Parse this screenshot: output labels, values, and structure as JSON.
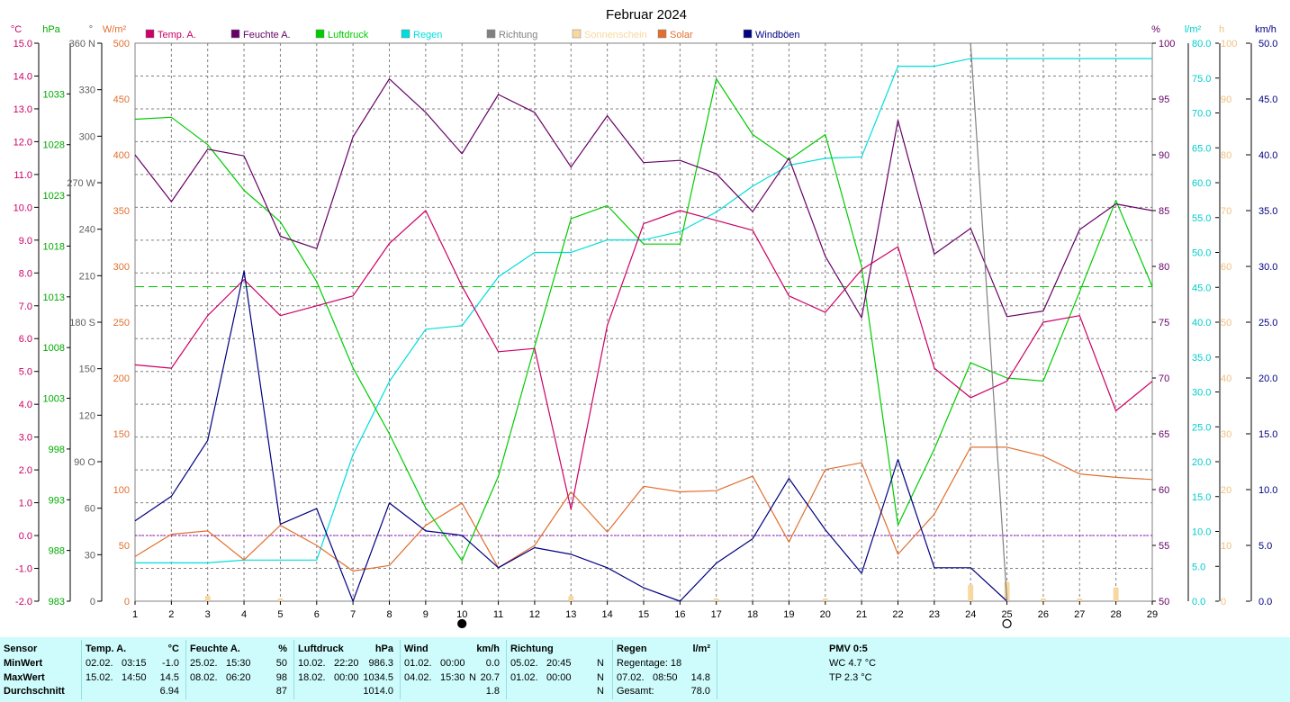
{
  "chart_data": {
    "type": "line",
    "title": "Februar 2024",
    "x": [
      1,
      2,
      3,
      4,
      5,
      6,
      7,
      8,
      9,
      10,
      11,
      12,
      13,
      14,
      15,
      16,
      17,
      18,
      19,
      20,
      21,
      22,
      23,
      24,
      25,
      26,
      27,
      28,
      29
    ],
    "xlim": [
      1,
      29
    ],
    "xtick_labels": [
      "1",
      "2",
      "3",
      "4",
      "5",
      "6",
      "7",
      "8",
      "9",
      "10",
      "11",
      "12",
      "13",
      "14",
      "15",
      "16",
      "17",
      "18",
      "19",
      "20",
      "21",
      "22",
      "23",
      "24",
      "25",
      "26",
      "27",
      "28",
      "29"
    ],
    "moon_markers": [
      {
        "x": 10,
        "phase": "new"
      },
      {
        "x": 25,
        "phase": "full"
      }
    ],
    "axes": {
      "temp": {
        "unit": "°C",
        "min": -2.0,
        "max": 15.0,
        "step": 1.0,
        "decimals": 1,
        "color": "#cc0066"
      },
      "pressure": {
        "unit": "hPa",
        "min": 983,
        "max": 1038,
        "ticks": [
          983,
          988,
          993,
          998,
          1003,
          1008,
          1013,
          1018,
          1023,
          1028,
          1033
        ],
        "color": "#00aa00"
      },
      "direction": {
        "unit": "°",
        "min": 0,
        "max": 360,
        "ticks": [
          {
            "v": 0,
            "t": "0"
          },
          {
            "v": 30,
            "t": "30"
          },
          {
            "v": 60,
            "t": "60"
          },
          {
            "v": 90,
            "t": "90 O"
          },
          {
            "v": 120,
            "t": "120"
          },
          {
            "v": 150,
            "t": "150"
          },
          {
            "v": 180,
            "t": "180 S"
          },
          {
            "v": 210,
            "t": "210"
          },
          {
            "v": 240,
            "t": "240"
          },
          {
            "v": 270,
            "t": "270 W"
          },
          {
            "v": 300,
            "t": "300"
          },
          {
            "v": 330,
            "t": "330"
          },
          {
            "v": 360,
            "t": "360 N"
          }
        ],
        "color": "#808080"
      },
      "solar": {
        "unit": "W/m²",
        "min": 0,
        "max": 500,
        "step": 50,
        "color": "#e07030"
      },
      "humidity": {
        "unit": "%",
        "min": 50,
        "max": 100,
        "step": 5,
        "color": "#660066"
      },
      "rain": {
        "unit": "l/m²",
        "min": 0.0,
        "max": 80.0,
        "step": 5.0,
        "decimals": 1,
        "color": "#00cccc"
      },
      "sunshine": {
        "unit": "h",
        "min": 0,
        "max": 100,
        "step": 10,
        "color": "#f0c080"
      },
      "wind": {
        "unit": "km/h",
        "min": 0.0,
        "max": 50.0,
        "step": 5.0,
        "decimals": 1,
        "color": "#000080"
      }
    },
    "legend": [
      {
        "name": "Temp. A.",
        "color": "#cc0066"
      },
      {
        "name": "Feuchte A.",
        "color": "#660066"
      },
      {
        "name": "Luftdruck",
        "color": "#00cc00"
      },
      {
        "name": "Regen",
        "color": "#00dddd"
      },
      {
        "name": "Richtung",
        "color": "#808080"
      },
      {
        "name": "Sonnenschein",
        "color": "#f8d8a0"
      },
      {
        "name": "Solar",
        "color": "#e07030"
      },
      {
        "name": "Windböen",
        "color": "#000080"
      }
    ],
    "series": [
      {
        "name": "Temp. A.",
        "axis": "temp",
        "color": "#cc0066",
        "values": [
          5.2,
          5.1,
          6.7,
          7.8,
          6.7,
          7.0,
          7.3,
          8.9,
          9.9,
          7.6,
          5.6,
          5.7,
          0.8,
          6.4,
          9.5,
          9.9,
          9.6,
          9.3,
          7.3,
          6.8,
          8.1,
          8.8,
          5.1,
          4.2,
          4.7,
          6.5,
          6.7,
          3.8,
          4.7
        ]
      },
      {
        "name": "Feuchte A.",
        "axis": "humidity",
        "color": "#660066",
        "values": [
          90,
          85.8,
          90.5,
          89.9,
          82.7,
          81.6,
          91.6,
          96.8,
          93.8,
          90.1,
          95.4,
          93.8,
          88.9,
          93.5,
          89.3,
          89.5,
          88.3,
          84.9,
          89.7,
          80.9,
          75.4,
          93.1,
          81.1,
          83.4,
          75.5,
          76,
          83.3,
          85.6,
          85
        ]
      },
      {
        "name": "Luftdruck",
        "axis": "pressure",
        "color": "#00cc00",
        "values": [
          1030.5,
          1030.7,
          1028.0,
          1023.5,
          1020.4,
          1014.5,
          1006.0,
          999.5,
          992.2,
          987.0,
          995.3,
          1008.1,
          1020.7,
          1022.0,
          1018.2,
          1018.2,
          1034.5,
          1029.0,
          1026.5,
          1029.0,
          1016.0,
          990.5,
          998.0,
          1006.5,
          1005.0,
          1004.7,
          1013.5,
          1022.5,
          1014.0
        ]
      },
      {
        "name": "Regen",
        "axis": "rain",
        "color": "#00dddd",
        "values": [
          5.5,
          5.5,
          5.5,
          5.9,
          5.9,
          5.9,
          21.0,
          31.5,
          39.0,
          39.5,
          46.5,
          50.0,
          50.0,
          51.8,
          51.8,
          53.0,
          55.8,
          59.5,
          62.5,
          63.5,
          63.7,
          76.7,
          76.7,
          77.8,
          77.8,
          77.8,
          77.8,
          77.8,
          77.8
        ]
      },
      {
        "name": "Richtung",
        "axis": "direction",
        "color": "#808080",
        "x": [
          24,
          25
        ],
        "values": [
          360,
          0
        ]
      },
      {
        "name": "Sonnenschein",
        "axis": "sunshine",
        "color": "#f8d8a0",
        "values": [
          0,
          0,
          1.0,
          0,
          0.5,
          0,
          0,
          0,
          0,
          0,
          0,
          0,
          1.0,
          0,
          0,
          0,
          0.5,
          0,
          0,
          0.5,
          0,
          0,
          0,
          3.0,
          3.5,
          0.5,
          0.5,
          2.5,
          0
        ]
      },
      {
        "name": "Solar",
        "axis": "solar",
        "color": "#e07030",
        "values": [
          40,
          60,
          63,
          37,
          68,
          50,
          27,
          32,
          68,
          88,
          30,
          50,
          98,
          62,
          103,
          98,
          99,
          112,
          53,
          118,
          124,
          42,
          78,
          138,
          138,
          130,
          114,
          111,
          109
        ]
      },
      {
        "name": "Windböen",
        "axis": "wind",
        "color": "#000080",
        "values": [
          7.2,
          9.4,
          14.4,
          29.6,
          6.9,
          8.3,
          0.0,
          8.8,
          6.3,
          5.9,
          3.0,
          4.8,
          4.2,
          3.0,
          1.2,
          0.0,
          3.4,
          5.6,
          11.0,
          6.4,
          2.5,
          12.7,
          3.0,
          3.0,
          0.0,
          null,
          null,
          null,
          null
        ]
      }
    ],
    "reference_lines": [
      {
        "name": "Luftdruck Durchschnitt",
        "axis": "pressure",
        "value": 1014.0,
        "color": "#00cc00",
        "dashed": true
      },
      {
        "name": "0 °C",
        "axis": "temp",
        "value": 0.0,
        "color": "#9900cc",
        "dotted": true
      }
    ],
    "grid": true
  },
  "stats": {
    "row_labels": [
      "Sensor",
      "MinWert",
      "MaxWert",
      "Durchschnitt"
    ],
    "temp": {
      "title": "Temp. A.",
      "unit": "°C",
      "min_date": "02.02.",
      "min_time": "03:15",
      "min": "-1.0",
      "max_date": "15.02.",
      "max_time": "14:50",
      "max": "14.5",
      "avg": "6.94"
    },
    "humidity": {
      "title": "Feuchte A.",
      "unit": "%",
      "min_date": "25.02.",
      "min_time": "15:30",
      "min": "50",
      "max_date": "08.02.",
      "max_time": "06:20",
      "max": "98",
      "avg": "87"
    },
    "pressure": {
      "title": "Luftdruck",
      "unit": "hPa",
      "min_date": "10.02.",
      "min_time": "22:20",
      "min": "986.3",
      "max_date": "18.02.",
      "max_time": "00:00",
      "max": "1034.5",
      "avg": "1014.0"
    },
    "wind": {
      "title": "Wind",
      "unit": "km/h",
      "min_date": "01.02.",
      "min_time": "00:00",
      "min": "0.0",
      "max_date": "04.02.",
      "max_time": "15:30",
      "max_dir": "N",
      "max": "20.7",
      "avg": "1.8"
    },
    "direction": {
      "title": "Richtung",
      "min_date": "05.02.",
      "min_time": "20:45",
      "min": "N",
      "max_date": "01.02.",
      "max_time": "00:00",
      "max": "N",
      "avg": "N"
    },
    "rain": {
      "title": "Regen",
      "unit": "l/m²",
      "days": "Regentage: 18",
      "max_date": "07.02.",
      "max_time": "08:50",
      "max": "14.8",
      "total_label": "Gesamt:",
      "total": "78.0"
    },
    "pmv": {
      "title": "PMV 0:5",
      "wc": "WC 4.7 °C",
      "tp": "TP 2.3 °C"
    }
  }
}
